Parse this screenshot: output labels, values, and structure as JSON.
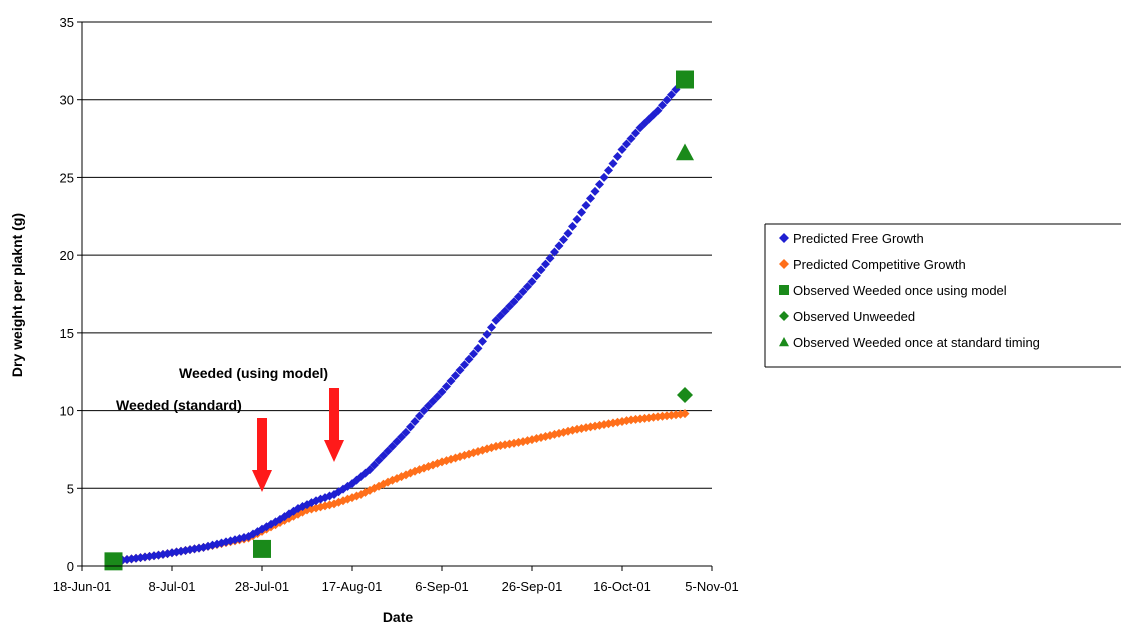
{
  "chart_data": {
    "type": "scatter",
    "xlabel": "Date",
    "ylabel": "Dry weight per plaknt (g)",
    "x_range": [
      "2001-06-18",
      "2001-11-05"
    ],
    "x_ticks": [
      {
        "date": "2001-06-18",
        "label": "18-Jun-01"
      },
      {
        "date": "2001-07-08",
        "label": "8-Jul-01"
      },
      {
        "date": "2001-07-28",
        "label": "28-Jul-01"
      },
      {
        "date": "2001-08-17",
        "label": "17-Aug-01"
      },
      {
        "date": "2001-09-06",
        "label": "6-Sep-01"
      },
      {
        "date": "2001-09-26",
        "label": "26-Sep-01"
      },
      {
        "date": "2001-10-16",
        "label": "16-Oct-01"
      },
      {
        "date": "2001-11-05",
        "label": "5-Nov-01"
      }
    ],
    "ylim": [
      0,
      35
    ],
    "y_ticks": [
      0,
      5,
      10,
      15,
      20,
      25,
      30,
      35
    ],
    "grid": "horizontal",
    "legend_position": "right",
    "series": [
      {
        "name": "Predicted  Free Growth",
        "marker": "diamond",
        "color": "#1f1fd1",
        "start": "2001-06-25",
        "end": "2001-10-29",
        "points": [
          [
            "2001-06-25",
            0.3
          ],
          [
            "2001-07-05",
            0.7
          ],
          [
            "2001-07-15",
            1.2
          ],
          [
            "2001-07-25",
            1.9
          ],
          [
            "2001-08-01",
            3.0
          ],
          [
            "2001-08-05",
            3.7
          ],
          [
            "2001-08-09",
            4.2
          ],
          [
            "2001-08-13",
            4.6
          ],
          [
            "2001-08-17",
            5.3
          ],
          [
            "2001-08-21",
            6.2
          ],
          [
            "2001-08-25",
            7.4
          ],
          [
            "2001-08-29",
            8.6
          ],
          [
            "2001-09-02",
            10.0
          ],
          [
            "2001-09-06",
            11.2
          ],
          [
            "2001-09-10",
            12.6
          ],
          [
            "2001-09-14",
            14.0
          ],
          [
            "2001-09-18",
            15.8
          ],
          [
            "2001-09-22",
            17.0
          ],
          [
            "2001-09-26",
            18.3
          ],
          [
            "2001-09-30",
            19.8
          ],
          [
            "2001-10-04",
            21.4
          ],
          [
            "2001-10-08",
            23.2
          ],
          [
            "2001-10-12",
            25.0
          ],
          [
            "2001-10-16",
            26.8
          ],
          [
            "2001-10-20",
            28.2
          ],
          [
            "2001-10-24",
            29.3
          ],
          [
            "2001-10-29",
            31.0
          ]
        ]
      },
      {
        "name": "Predicted  Competitive Growth",
        "marker": "diamond",
        "color": "#ff6f1a",
        "start": "2001-06-25",
        "end": "2001-10-30",
        "points": [
          [
            "2001-06-25",
            0.3
          ],
          [
            "2001-07-05",
            0.7
          ],
          [
            "2001-07-15",
            1.2
          ],
          [
            "2001-07-25",
            1.8
          ],
          [
            "2001-08-01",
            2.8
          ],
          [
            "2001-08-07",
            3.6
          ],
          [
            "2001-08-13",
            4.0
          ],
          [
            "2001-08-19",
            4.6
          ],
          [
            "2001-08-25",
            5.4
          ],
          [
            "2001-08-31",
            6.1
          ],
          [
            "2001-09-06",
            6.7
          ],
          [
            "2001-09-12",
            7.2
          ],
          [
            "2001-09-18",
            7.7
          ],
          [
            "2001-09-24",
            8.0
          ],
          [
            "2001-09-30",
            8.4
          ],
          [
            "2001-10-06",
            8.8
          ],
          [
            "2001-10-12",
            9.1
          ],
          [
            "2001-10-18",
            9.4
          ],
          [
            "2001-10-24",
            9.6
          ],
          [
            "2001-10-30",
            9.8
          ]
        ]
      },
      {
        "name": "Observed Weeded once using model",
        "marker": "square",
        "color": "#1a8a1a",
        "points": [
          [
            "2001-06-25",
            0.3
          ],
          [
            "2001-07-28",
            1.1
          ],
          [
            "2001-10-30",
            31.3
          ]
        ]
      },
      {
        "name": "Observed  Unweeded",
        "marker": "diamond",
        "color": "#1a8a1a",
        "points": [
          [
            "2001-10-30",
            11.0
          ]
        ]
      },
      {
        "name": "Observed Weeded once at standard timing",
        "marker": "triangle",
        "color": "#1a8a1a",
        "points": [
          [
            "2001-10-30",
            26.6
          ]
        ]
      }
    ],
    "annotations": [
      {
        "text": "Weeded (using model)",
        "arrow_date": "2001-08-13"
      },
      {
        "text": "Weeded (standard)",
        "arrow_date": "2001-07-28"
      }
    ]
  },
  "colors": {
    "arrow": "#ff1a1a",
    "axis": "#000000",
    "grid": "#000000"
  }
}
